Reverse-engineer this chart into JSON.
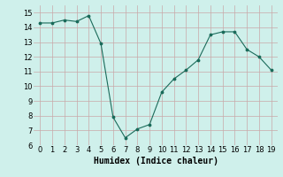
{
  "x": [
    0,
    1,
    2,
    3,
    4,
    5,
    6,
    7,
    8,
    9,
    10,
    11,
    12,
    13,
    14,
    15,
    16,
    17,
    18,
    19
  ],
  "y": [
    14.3,
    14.3,
    14.5,
    14.4,
    14.8,
    12.9,
    7.9,
    6.5,
    7.1,
    7.4,
    9.6,
    10.5,
    11.1,
    11.8,
    13.5,
    13.7,
    13.7,
    12.5,
    12.0,
    11.1
  ],
  "line_color": "#1a6b5a",
  "marker_color": "#1a6b5a",
  "bg_color": "#cff0eb",
  "grid_major_color": "#b8d4cf",
  "grid_minor_color": "#ddf5f0",
  "xlabel": "Humidex (Indice chaleur)",
  "xlabel_fontsize": 7,
  "xlim": [
    -0.5,
    19.5
  ],
  "ylim": [
    6,
    15.5
  ],
  "yticks": [
    6,
    7,
    8,
    9,
    10,
    11,
    12,
    13,
    14,
    15
  ],
  "xticks": [
    0,
    1,
    2,
    3,
    4,
    5,
    6,
    7,
    8,
    9,
    10,
    11,
    12,
    13,
    14,
    15,
    16,
    17,
    18,
    19
  ]
}
